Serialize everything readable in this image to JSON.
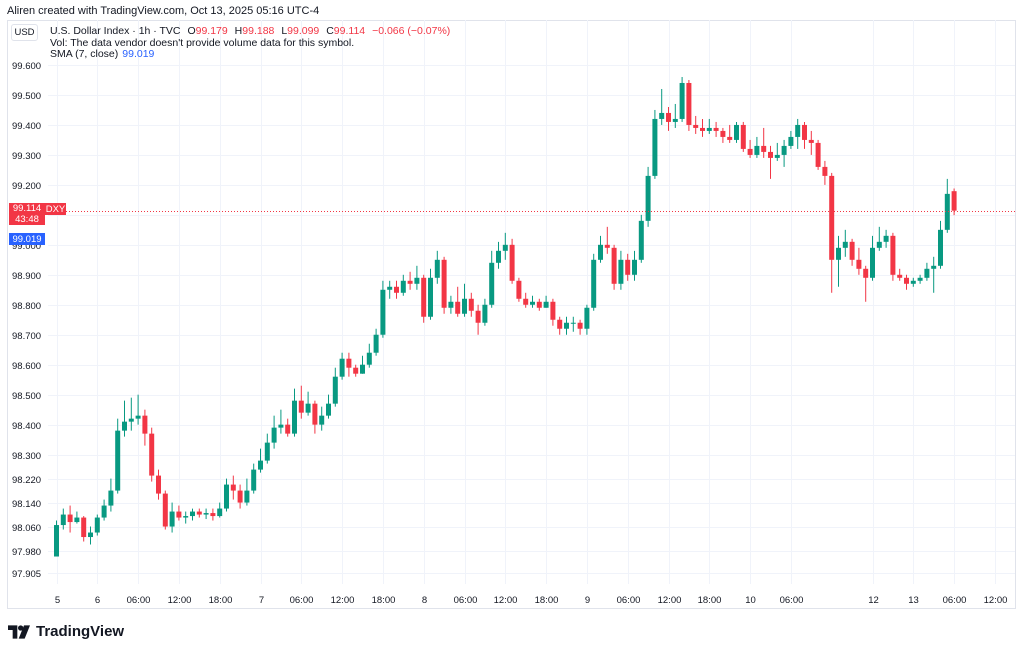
{
  "attribution": "Aliren created with TradingView.com, Oct 13, 2025 05:16 UTC-4",
  "currency": "USD",
  "legend": {
    "symbol": "U.S. Dollar Index · 1h · TVC",
    "o_label": "O",
    "o_value": "99.179",
    "h_label": "H",
    "h_value": "99.188",
    "l_label": "L",
    "l_value": "99.099",
    "c_label": "C",
    "c_value": "99.114",
    "change": "−0.066 (−0.07%)",
    "vol_note": "Vol: The data vendor doesn't provide volume data for this symbol.",
    "sma_label": "SMA (7, close)",
    "sma_value": "99.019"
  },
  "badges": {
    "price": "99.114",
    "countdown": "43:48",
    "ticker": "DXY",
    "sma": "99.019"
  },
  "logo": "TradingView",
  "colors": {
    "up": "#089981",
    "down": "#f23645",
    "sma": "#2962ff",
    "grid": "#f0f3fa"
  },
  "chart_data": {
    "type": "candlestick",
    "ylim": [
      97.88,
      99.63
    ],
    "y_ticks": [
      97.905,
      97.98,
      98.06,
      98.14,
      98.22,
      98.3,
      98.4,
      98.5,
      98.6,
      98.7,
      98.8,
      98.9,
      99.0,
      99.1,
      99.2,
      99.3,
      99.4,
      99.5,
      99.6
    ],
    "y_tick_labels": [
      "97.905",
      "97.980",
      "98.060",
      "98.140",
      "98.220",
      "98.300",
      "98.400",
      "98.500",
      "98.600",
      "98.700",
      "98.800",
      "98.900",
      "99.000",
      "99.100",
      "99.200",
      "99.300",
      "99.400",
      "99.500",
      "99.600"
    ],
    "x_ticks": [
      {
        "label": "5",
        "bar": 0
      },
      {
        "label": "6",
        "bar": 6
      },
      {
        "label": "06:00",
        "bar": 12
      },
      {
        "label": "12:00",
        "bar": 18
      },
      {
        "label": "18:00",
        "bar": 24
      },
      {
        "label": "7",
        "bar": 30
      },
      {
        "label": "06:00",
        "bar": 36
      },
      {
        "label": "12:00",
        "bar": 42
      },
      {
        "label": "18:00",
        "bar": 48
      },
      {
        "label": "8",
        "bar": 54
      },
      {
        "label": "06:00",
        "bar": 60
      },
      {
        "label": "12:00",
        "bar": 66
      },
      {
        "label": "18:00",
        "bar": 72
      },
      {
        "label": "9",
        "bar": 78
      },
      {
        "label": "06:00",
        "bar": 84
      },
      {
        "label": "12:00",
        "bar": 90
      },
      {
        "label": "18:00",
        "bar": 96
      },
      {
        "label": "10",
        "bar": 102
      },
      {
        "label": "06:00",
        "bar": 108
      },
      {
        "label": "12",
        "bar": 120
      },
      {
        "label": "13",
        "bar": 126
      },
      {
        "label": "06:00",
        "bar": 132
      },
      {
        "label": "12:00",
        "bar": 138
      }
    ],
    "last_price": 99.114,
    "sma_value": 99.019,
    "candles": [
      [
        97.96,
        98.065,
        98.08,
        97.96
      ],
      [
        98.065,
        98.1,
        98.12,
        98.05
      ],
      [
        98.1,
        98.075,
        98.13,
        98.04
      ],
      [
        98.075,
        98.09,
        98.11,
        98.07
      ],
      [
        98.09,
        98.025,
        98.095,
        98.01
      ],
      [
        98.025,
        98.04,
        98.06,
        98.0
      ],
      [
        98.04,
        98.09,
        98.1,
        98.03
      ],
      [
        98.09,
        98.13,
        98.15,
        98.08
      ],
      [
        98.13,
        98.18,
        98.22,
        98.11
      ],
      [
        98.18,
        98.38,
        98.42,
        98.17
      ],
      [
        98.38,
        98.41,
        98.48,
        98.36
      ],
      [
        98.41,
        98.42,
        98.49,
        98.38
      ],
      [
        98.42,
        98.43,
        98.5,
        98.4
      ],
      [
        98.43,
        98.37,
        98.45,
        98.33
      ],
      [
        98.37,
        98.23,
        98.39,
        98.21
      ],
      [
        98.23,
        98.17,
        98.25,
        98.15
      ],
      [
        98.17,
        98.06,
        98.18,
        98.05
      ],
      [
        98.06,
        98.11,
        98.14,
        98.04
      ],
      [
        98.11,
        98.09,
        98.13,
        98.08
      ],
      [
        98.09,
        98.095,
        98.11,
        98.07
      ],
      [
        98.095,
        98.11,
        98.12,
        98.08
      ],
      [
        98.11,
        98.1,
        98.12,
        98.09
      ],
      [
        98.1,
        98.105,
        98.12,
        98.085
      ],
      [
        98.105,
        98.095,
        98.12,
        98.08
      ],
      [
        98.095,
        98.12,
        98.14,
        98.09
      ],
      [
        98.12,
        98.2,
        98.22,
        98.11
      ],
      [
        98.2,
        98.18,
        98.23,
        98.15
      ],
      [
        98.18,
        98.14,
        98.2,
        98.12
      ],
      [
        98.14,
        98.18,
        98.22,
        98.13
      ],
      [
        98.18,
        98.25,
        98.27,
        98.17
      ],
      [
        98.25,
        98.28,
        98.32,
        98.24
      ],
      [
        98.28,
        98.34,
        98.37,
        98.27
      ],
      [
        98.34,
        98.39,
        98.43,
        98.32
      ],
      [
        98.39,
        98.4,
        98.45,
        98.37
      ],
      [
        98.4,
        98.37,
        98.42,
        98.36
      ],
      [
        98.37,
        98.48,
        98.52,
        98.36
      ],
      [
        98.48,
        98.44,
        98.53,
        98.42
      ],
      [
        98.44,
        98.47,
        98.51,
        98.43
      ],
      [
        98.47,
        98.4,
        98.48,
        98.37
      ],
      [
        98.4,
        98.43,
        98.46,
        98.38
      ],
      [
        98.43,
        98.47,
        98.5,
        98.42
      ],
      [
        98.47,
        98.56,
        98.59,
        98.46
      ],
      [
        98.56,
        98.62,
        98.64,
        98.55
      ],
      [
        98.62,
        98.59,
        98.64,
        98.56
      ],
      [
        98.59,
        98.57,
        98.6,
        98.56
      ],
      [
        98.57,
        98.6,
        98.63,
        98.57
      ],
      [
        98.6,
        98.64,
        98.67,
        98.59
      ],
      [
        98.64,
        98.7,
        98.72,
        98.63
      ],
      [
        98.7,
        98.85,
        98.88,
        98.69
      ],
      [
        98.85,
        98.86,
        98.88,
        98.82
      ],
      [
        98.86,
        98.84,
        98.88,
        98.82
      ],
      [
        98.84,
        98.88,
        98.9,
        98.83
      ],
      [
        98.88,
        98.87,
        98.91,
        98.85
      ],
      [
        98.87,
        98.89,
        98.93,
        98.85
      ],
      [
        98.89,
        98.76,
        98.9,
        98.74
      ],
      [
        98.76,
        98.89,
        98.92,
        98.75
      ],
      [
        98.89,
        98.95,
        98.98,
        98.87
      ],
      [
        98.95,
        98.79,
        98.96,
        98.77
      ],
      [
        98.79,
        98.81,
        98.83,
        98.77
      ],
      [
        98.81,
        98.77,
        98.86,
        98.76
      ],
      [
        98.77,
        98.82,
        98.87,
        98.76
      ],
      [
        98.82,
        98.78,
        98.84,
        98.76
      ],
      [
        98.78,
        98.74,
        98.8,
        98.7
      ],
      [
        98.74,
        98.8,
        98.82,
        98.73
      ],
      [
        98.8,
        98.94,
        98.98,
        98.79
      ],
      [
        98.94,
        98.98,
        99.01,
        98.92
      ],
      [
        98.98,
        99.0,
        99.04,
        98.95
      ],
      [
        99.0,
        98.88,
        99.02,
        98.87
      ],
      [
        98.88,
        98.82,
        98.89,
        98.81
      ],
      [
        98.82,
        98.8,
        98.84,
        98.79
      ],
      [
        98.8,
        98.81,
        98.83,
        98.79
      ],
      [
        98.81,
        98.79,
        98.82,
        98.78
      ],
      [
        98.79,
        98.81,
        98.83,
        98.79
      ],
      [
        98.81,
        98.75,
        98.82,
        98.73
      ],
      [
        98.75,
        98.72,
        98.76,
        98.7
      ],
      [
        98.72,
        98.74,
        98.76,
        98.7
      ],
      [
        98.74,
        98.74,
        98.76,
        98.71
      ],
      [
        98.74,
        98.72,
        98.75,
        98.7
      ],
      [
        98.72,
        98.79,
        98.8,
        98.7
      ],
      [
        98.79,
        98.95,
        98.97,
        98.78
      ],
      [
        98.95,
        99.0,
        99.03,
        98.94
      ],
      [
        99.0,
        98.99,
        99.06,
        98.97
      ],
      [
        98.99,
        98.87,
        99.0,
        98.85
      ],
      [
        98.87,
        98.95,
        98.98,
        98.85
      ],
      [
        98.95,
        98.9,
        98.97,
        98.88
      ],
      [
        98.9,
        98.95,
        98.98,
        98.88
      ],
      [
        98.95,
        99.08,
        99.1,
        98.94
      ],
      [
        99.08,
        99.23,
        99.26,
        99.06
      ],
      [
        99.23,
        99.42,
        99.45,
        99.22
      ],
      [
        99.42,
        99.44,
        99.52,
        99.4
      ],
      [
        99.44,
        99.41,
        99.46,
        99.38
      ],
      [
        99.41,
        99.42,
        99.47,
        99.39
      ],
      [
        99.42,
        99.54,
        99.56,
        99.41
      ],
      [
        99.54,
        99.4,
        99.55,
        99.38
      ],
      [
        99.4,
        99.39,
        99.43,
        99.37
      ],
      [
        99.39,
        99.38,
        99.42,
        99.36
      ],
      [
        99.38,
        99.39,
        99.42,
        99.37
      ],
      [
        99.39,
        99.38,
        99.41,
        99.36
      ],
      [
        99.38,
        99.36,
        99.39,
        99.34
      ],
      [
        99.36,
        99.35,
        99.4,
        99.34
      ],
      [
        99.35,
        99.4,
        99.41,
        99.34
      ],
      [
        99.4,
        99.32,
        99.41,
        99.31
      ],
      [
        99.32,
        99.3,
        99.35,
        99.29
      ],
      [
        99.3,
        99.33,
        99.36,
        99.29
      ],
      [
        99.33,
        99.31,
        99.39,
        99.29
      ],
      [
        99.31,
        99.29,
        99.33,
        99.22
      ],
      [
        99.29,
        99.3,
        99.34,
        99.28
      ],
      [
        99.3,
        99.33,
        99.35,
        99.26
      ],
      [
        99.33,
        99.36,
        99.38,
        99.32
      ],
      [
        99.36,
        99.4,
        99.42,
        99.32
      ],
      [
        99.4,
        99.35,
        99.41,
        99.32
      ],
      [
        99.35,
        99.34,
        99.38,
        99.3
      ],
      [
        99.34,
        99.26,
        99.35,
        99.25
      ],
      [
        99.26,
        99.23,
        99.28,
        99.2
      ],
      [
        99.23,
        98.95,
        99.24,
        98.84
      ],
      [
        98.95,
        98.99,
        99.03,
        98.86
      ],
      [
        98.99,
        99.01,
        99.05,
        98.96
      ],
      [
        99.01,
        98.95,
        99.02,
        98.93
      ],
      [
        98.95,
        98.92,
        98.99,
        98.9
      ],
      [
        98.92,
        98.89,
        98.93,
        98.81
      ],
      [
        98.89,
        98.99,
        99.03,
        98.88
      ],
      [
        98.99,
        99.01,
        99.06,
        98.98
      ],
      [
        99.01,
        99.03,
        99.05,
        98.99
      ],
      [
        99.03,
        98.9,
        99.04,
        98.88
      ],
      [
        98.9,
        98.89,
        98.92,
        98.88
      ],
      [
        98.89,
        98.87,
        98.9,
        98.85
      ],
      [
        98.87,
        98.88,
        98.89,
        98.86
      ],
      [
        98.88,
        98.89,
        98.9,
        98.87
      ],
      [
        98.89,
        98.92,
        98.94,
        98.88
      ],
      [
        98.92,
        98.93,
        98.96,
        98.84
      ],
      [
        98.93,
        99.05,
        99.08,
        98.92
      ],
      [
        99.05,
        99.17,
        99.22,
        99.04
      ],
      [
        99.179,
        99.114,
        99.188,
        99.099
      ]
    ]
  }
}
